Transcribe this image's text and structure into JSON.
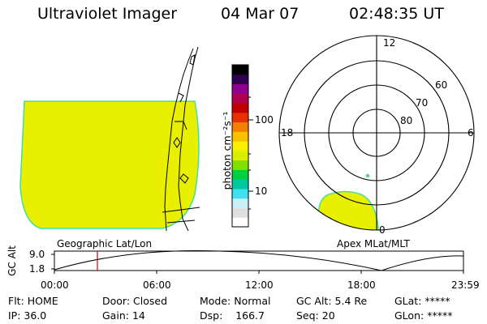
{
  "header": {
    "title": "Ultraviolet Imager",
    "date": "04 Mar 07",
    "time": "02:48:35 UT"
  },
  "left_panel": {
    "label": "Geographic Lat/Lon"
  },
  "colorbar": {
    "label": "photon cm⁻²s⁻¹",
    "ticks": [
      {
        "label": "100",
        "value": 100
      },
      {
        "label": "10",
        "value": 10
      }
    ],
    "colors": [
      "#ffffff",
      "#e0e0e0",
      "#c8f0f8",
      "#40e0f0",
      "#00c8a0",
      "#00d040",
      "#80e000",
      "#d8f000",
      "#f8f000",
      "#f8c000",
      "#f08000",
      "#e83000",
      "#c00000",
      "#b00050",
      "#900090",
      "#300050",
      "#000000"
    ]
  },
  "polar_plot": {
    "label": "Apex MLat/MLT",
    "mlt_labels": [
      {
        "text": "12",
        "pos": "top"
      },
      {
        "text": "18",
        "pos": "left"
      },
      {
        "text": "6",
        "pos": "right"
      },
      {
        "text": "0",
        "pos": "bottom"
      }
    ],
    "lat_labels": [
      "60",
      "70",
      "80"
    ]
  },
  "altitude_plot": {
    "ylabel": "GC Alt",
    "y_ticks": [
      "9.0",
      "1.8"
    ],
    "x_ticks": [
      "00:00",
      "06:00",
      "12:00",
      "18:00",
      "23:59"
    ],
    "current_time_marker": "02:48"
  },
  "status": {
    "row1": [
      {
        "label": "Flt:",
        "value": "HOME"
      },
      {
        "label": "Door:",
        "value": "Closed"
      },
      {
        "label": "Mode:",
        "value": "Normal"
      },
      {
        "label": "GC Alt:",
        "value": "5.4 Re"
      },
      {
        "label": "GLat:",
        "value": "*****"
      }
    ],
    "row2": [
      {
        "label": "IP:",
        "value": "36.0"
      },
      {
        "label": "Gain:",
        "value": "14"
      },
      {
        "label": "Dsp:",
        "value": "166.7"
      },
      {
        "label": "Seq:",
        "value": "20"
      },
      {
        "label": "GLon:",
        "value": "*****"
      }
    ]
  }
}
